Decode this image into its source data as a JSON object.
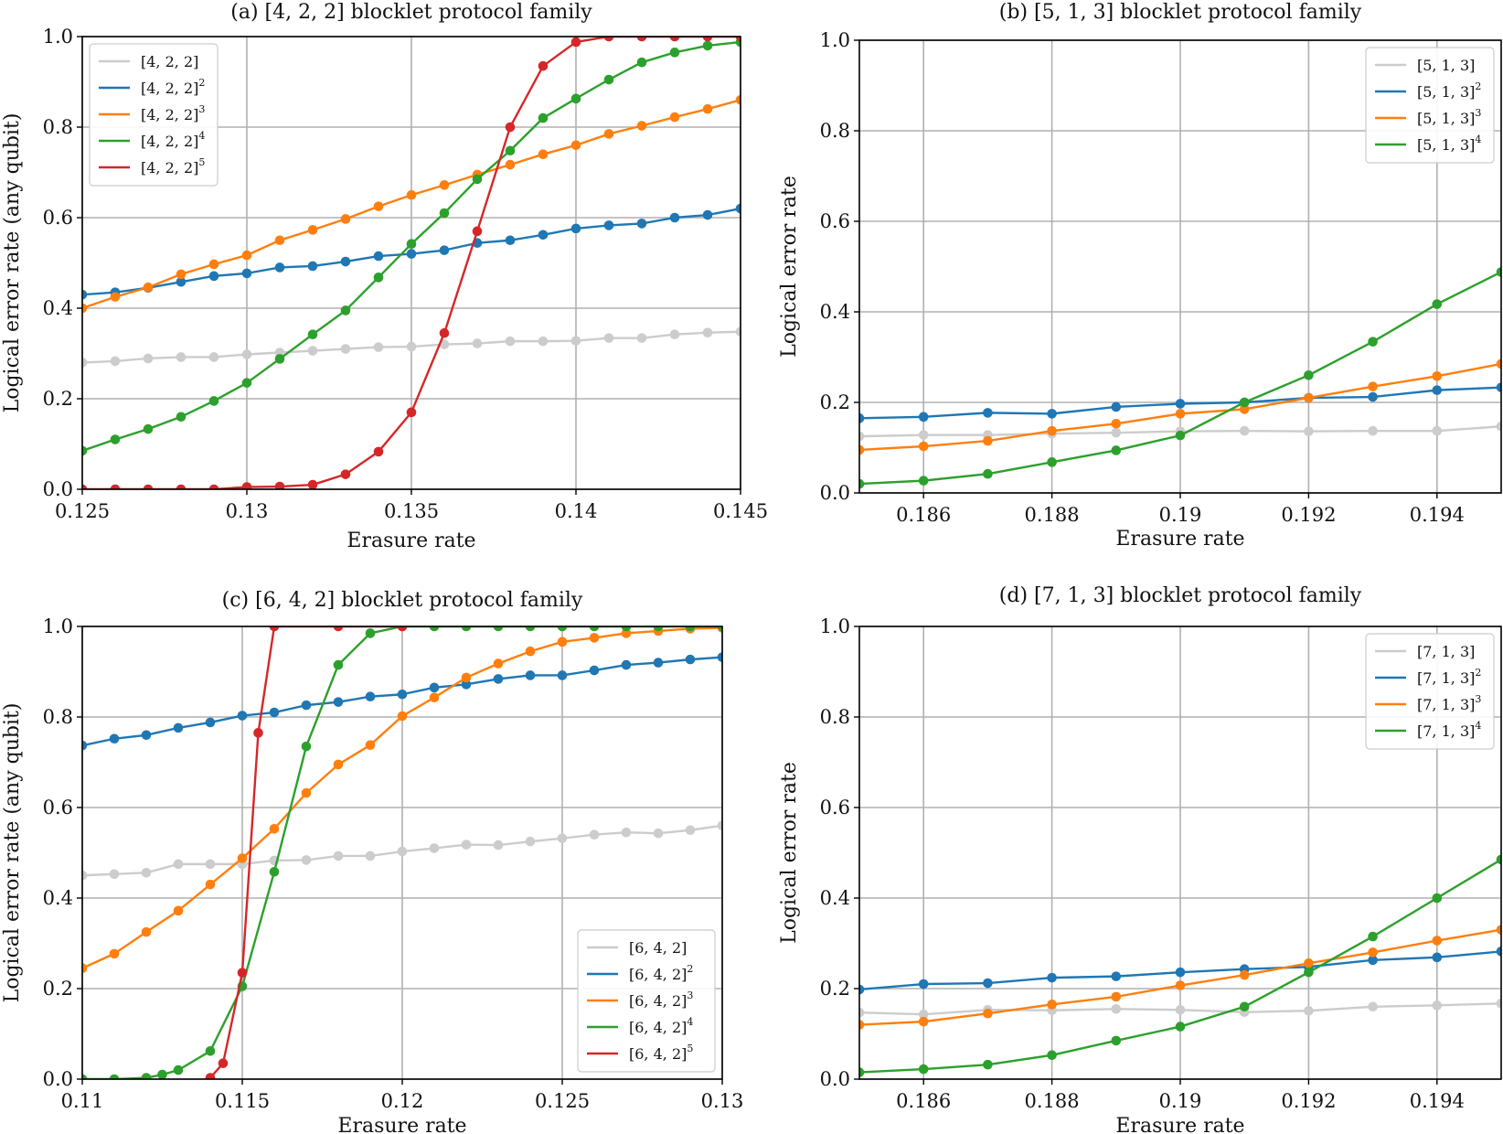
{
  "chart_data": [
    {
      "type": "line",
      "title": "(a) [4, 2, 2] blocklet protocol family",
      "xlabel": "Erasure rate",
      "ylabel": "Logical error rate (any qubit)",
      "xlim": [
        0.125,
        0.145
      ],
      "ylim": [
        0.0,
        1.0
      ],
      "xticks": [
        0.125,
        0.13,
        0.135,
        0.14,
        0.145
      ],
      "xtick_labels": [
        "0.125",
        "0.13",
        "0.135",
        "0.14",
        "0.145"
      ],
      "yticks": [
        0,
        0.2,
        0.4,
        0.6,
        0.8,
        1.0
      ],
      "ytick_labels": [
        "0.0",
        "0.2",
        "0.4",
        "0.6",
        "0.8",
        "1.0"
      ],
      "grid": true,
      "legend_loc": "top-left",
      "x": [
        0.125,
        0.126,
        0.127,
        0.128,
        0.129,
        0.13,
        0.131,
        0.132,
        0.133,
        0.134,
        0.135,
        0.136,
        0.137,
        0.138,
        0.139,
        0.14,
        0.141,
        0.142,
        0.143,
        0.144,
        0.145
      ],
      "series": [
        {
          "name": "[4, 2, 2]",
          "sup": "",
          "color": "#cccccc",
          "values": [
            0.28,
            0.283,
            0.289,
            0.292,
            0.292,
            0.298,
            0.302,
            0.306,
            0.31,
            0.314,
            0.315,
            0.32,
            0.322,
            0.327,
            0.327,
            0.328,
            0.334,
            0.334,
            0.342,
            0.346,
            0.348
          ]
        },
        {
          "name": "[4, 2, 2]",
          "sup": "2",
          "color": "#1f77b4",
          "values": [
            0.43,
            0.435,
            0.445,
            0.458,
            0.471,
            0.477,
            0.49,
            0.493,
            0.503,
            0.515,
            0.52,
            0.528,
            0.544,
            0.55,
            0.562,
            0.576,
            0.583,
            0.587,
            0.6,
            0.606,
            0.62
          ]
        },
        {
          "name": "[4, 2, 2]",
          "sup": "3",
          "color": "#ff7f0e",
          "values": [
            0.4,
            0.425,
            0.446,
            0.475,
            0.497,
            0.517,
            0.55,
            0.573,
            0.597,
            0.625,
            0.65,
            0.672,
            0.695,
            0.717,
            0.74,
            0.76,
            0.785,
            0.803,
            0.822,
            0.84,
            0.86
          ]
        },
        {
          "name": "[4, 2, 2]",
          "sup": "4",
          "color": "#2ca02c",
          "values": [
            0.085,
            0.11,
            0.133,
            0.16,
            0.195,
            0.235,
            0.288,
            0.342,
            0.395,
            0.468,
            0.542,
            0.61,
            0.685,
            0.748,
            0.82,
            0.863,
            0.905,
            0.943,
            0.965,
            0.98,
            0.988
          ]
        },
        {
          "name": "[4, 2, 2]",
          "sup": "5",
          "color": "#d62728",
          "values": [
            0.0,
            0.0,
            0.0,
            0.0,
            0.0,
            0.005,
            0.006,
            0.01,
            0.033,
            0.083,
            0.17,
            0.345,
            0.57,
            0.8,
            0.935,
            0.988,
            1.0,
            1.0,
            1.0,
            1.0,
            1.0
          ]
        }
      ]
    },
    {
      "type": "line",
      "title": "(b) [5, 1, 3] blocklet protocol family",
      "xlabel": "Erasure rate",
      "ylabel": "Logical error rate",
      "xlim": [
        0.185,
        0.195
      ],
      "ylim": [
        0.0,
        1.0
      ],
      "xticks": [
        0.186,
        0.188,
        0.19,
        0.192,
        0.194
      ],
      "xtick_labels": [
        "0.186",
        "0.188",
        "0.19",
        "0.192",
        "0.194"
      ],
      "yticks": [
        0,
        0.2,
        0.4,
        0.6,
        0.8,
        1.0
      ],
      "ytick_labels": [
        "0.0",
        "0.2",
        "0.4",
        "0.6",
        "0.8",
        "1.0"
      ],
      "grid": true,
      "legend_loc": "top-right",
      "x": [
        0.185,
        0.186,
        0.187,
        0.188,
        0.189,
        0.19,
        0.191,
        0.192,
        0.193,
        0.194,
        0.195
      ],
      "series": [
        {
          "name": "[5, 1, 3]",
          "sup": "",
          "color": "#cccccc",
          "values": [
            0.125,
            0.128,
            0.128,
            0.131,
            0.133,
            0.136,
            0.137,
            0.136,
            0.137,
            0.137,
            0.147
          ]
        },
        {
          "name": "[5, 1, 3]",
          "sup": "2",
          "color": "#1f77b4",
          "values": [
            0.165,
            0.168,
            0.177,
            0.175,
            0.19,
            0.197,
            0.2,
            0.21,
            0.212,
            0.227,
            0.233
          ]
        },
        {
          "name": "[5, 1, 3]",
          "sup": "3",
          "color": "#ff7f0e",
          "values": [
            0.095,
            0.103,
            0.115,
            0.137,
            0.153,
            0.175,
            0.185,
            0.21,
            0.235,
            0.258,
            0.285
          ]
        },
        {
          "name": "[5, 1, 3]",
          "sup": "4",
          "color": "#2ca02c",
          "values": [
            0.02,
            0.027,
            0.042,
            0.068,
            0.094,
            0.127,
            0.2,
            0.26,
            0.334,
            0.417,
            0.488
          ]
        }
      ]
    },
    {
      "type": "line",
      "title": "(c) [6, 4, 2] blocklet protocol family",
      "xlabel": "Erasure rate",
      "ylabel": "Logical error rate (any qubit)",
      "xlim": [
        0.11,
        0.13
      ],
      "ylim": [
        0.0,
        1.0
      ],
      "xticks": [
        0.11,
        0.115,
        0.12,
        0.125,
        0.13
      ],
      "xtick_labels": [
        "0.11",
        "0.115",
        "0.12",
        "0.125",
        "0.13"
      ],
      "yticks": [
        0,
        0.2,
        0.4,
        0.6,
        0.8,
        1.0
      ],
      "ytick_labels": [
        "0.0",
        "0.2",
        "0.4",
        "0.6",
        "0.8",
        "1.0"
      ],
      "grid": true,
      "legend_loc": "bottom-right",
      "series": [
        {
          "name": "[6, 4, 2]",
          "sup": "",
          "color": "#cccccc",
          "x": [
            0.11,
            0.111,
            0.112,
            0.113,
            0.114,
            0.115,
            0.116,
            0.117,
            0.118,
            0.119,
            0.12,
            0.121,
            0.122,
            0.123,
            0.124,
            0.125,
            0.126,
            0.127,
            0.128,
            0.129,
            0.13
          ],
          "values": [
            0.45,
            0.453,
            0.456,
            0.475,
            0.475,
            0.475,
            0.483,
            0.484,
            0.493,
            0.493,
            0.503,
            0.51,
            0.518,
            0.517,
            0.525,
            0.532,
            0.54,
            0.545,
            0.543,
            0.55,
            0.56
          ]
        },
        {
          "name": "[6, 4, 2]",
          "sup": "2",
          "color": "#1f77b4",
          "x": [
            0.11,
            0.111,
            0.112,
            0.113,
            0.114,
            0.115,
            0.116,
            0.117,
            0.118,
            0.119,
            0.12,
            0.121,
            0.122,
            0.123,
            0.124,
            0.125,
            0.126,
            0.127,
            0.128,
            0.129,
            0.13
          ],
          "values": [
            0.737,
            0.752,
            0.76,
            0.776,
            0.788,
            0.803,
            0.81,
            0.826,
            0.833,
            0.845,
            0.85,
            0.865,
            0.872,
            0.884,
            0.892,
            0.892,
            0.903,
            0.915,
            0.92,
            0.927,
            0.932
          ]
        },
        {
          "name": "[6, 4, 2]",
          "sup": "3",
          "color": "#ff7f0e",
          "x": [
            0.11,
            0.111,
            0.112,
            0.113,
            0.114,
            0.115,
            0.116,
            0.117,
            0.118,
            0.119,
            0.12,
            0.121,
            0.122,
            0.123,
            0.124,
            0.125,
            0.126,
            0.127,
            0.128,
            0.129,
            0.13
          ],
          "values": [
            0.245,
            0.277,
            0.325,
            0.372,
            0.43,
            0.488,
            0.553,
            0.632,
            0.695,
            0.738,
            0.802,
            0.843,
            0.887,
            0.918,
            0.945,
            0.966,
            0.975,
            0.985,
            0.99,
            0.995,
            0.997
          ]
        },
        {
          "name": "[6, 4, 2]",
          "sup": "4",
          "color": "#2ca02c",
          "x": [
            0.11,
            0.111,
            0.112,
            0.1125,
            0.113,
            0.114,
            0.115,
            0.116,
            0.117,
            0.118,
            0.119,
            0.12,
            0.121,
            0.122,
            0.123,
            0.124,
            0.125,
            0.126,
            0.127,
            0.128,
            0.129,
            0.13
          ],
          "values": [
            0.0,
            0.0,
            0.003,
            0.01,
            0.02,
            0.062,
            0.205,
            0.458,
            0.735,
            0.915,
            0.985,
            1.0,
            1.0,
            1.0,
            1.0,
            1.0,
            1.0,
            1.0,
            1.0,
            1.0,
            1.0,
            1.0
          ]
        },
        {
          "name": "[6, 4, 2]",
          "sup": "5",
          "color": "#d62728",
          "x": [
            0.114,
            0.1144,
            0.115,
            0.1155,
            0.116,
            0.118,
            0.12
          ],
          "values": [
            0.003,
            0.035,
            0.235,
            0.765,
            1.0,
            1.0,
            1.0
          ]
        }
      ]
    },
    {
      "type": "line",
      "title": "(d) [7, 1, 3] blocklet protocol family",
      "xlabel": "Erasure rate",
      "ylabel": "Logical error rate",
      "xlim": [
        0.185,
        0.195
      ],
      "ylim": [
        0.0,
        1.0
      ],
      "xticks": [
        0.186,
        0.188,
        0.19,
        0.192,
        0.194
      ],
      "xtick_labels": [
        "0.186",
        "0.188",
        "0.19",
        "0.192",
        "0.194"
      ],
      "yticks": [
        0,
        0.2,
        0.4,
        0.6,
        0.8,
        1.0
      ],
      "ytick_labels": [
        "0.0",
        "0.2",
        "0.4",
        "0.6",
        "0.8",
        "1.0"
      ],
      "grid": true,
      "legend_loc": "top-right",
      "x": [
        0.185,
        0.186,
        0.187,
        0.188,
        0.189,
        0.19,
        0.191,
        0.192,
        0.193,
        0.194,
        0.195
      ],
      "series": [
        {
          "name": "[7, 1, 3]",
          "sup": "",
          "color": "#cccccc",
          "values": [
            0.147,
            0.143,
            0.153,
            0.152,
            0.155,
            0.153,
            0.148,
            0.151,
            0.16,
            0.163,
            0.167
          ]
        },
        {
          "name": "[7, 1, 3]",
          "sup": "2",
          "color": "#1f77b4",
          "values": [
            0.198,
            0.21,
            0.212,
            0.224,
            0.227,
            0.236,
            0.243,
            0.248,
            0.263,
            0.269,
            0.282
          ]
        },
        {
          "name": "[7, 1, 3]",
          "sup": "3",
          "color": "#ff7f0e",
          "values": [
            0.12,
            0.127,
            0.145,
            0.165,
            0.182,
            0.207,
            0.23,
            0.256,
            0.28,
            0.306,
            0.33
          ]
        },
        {
          "name": "[7, 1, 3]",
          "sup": "4",
          "color": "#2ca02c",
          "values": [
            0.015,
            0.022,
            0.032,
            0.053,
            0.085,
            0.116,
            0.16,
            0.236,
            0.315,
            0.4,
            0.485
          ]
        }
      ]
    }
  ]
}
